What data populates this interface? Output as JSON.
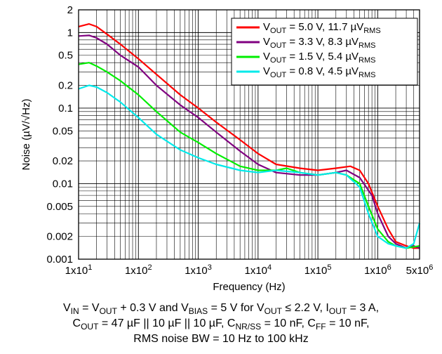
{
  "chart_data": {
    "type": "line",
    "title": "",
    "xlabel": "Frequency (Hz)",
    "ylabel_parts": {
      "pre": "Noise (",
      "mu": "µ",
      "post": "V/√Hz)"
    },
    "xscale": "log",
    "yscale": "log",
    "xlim": [
      10,
      5000000
    ],
    "ylim": [
      0.001,
      2
    ],
    "grid": true,
    "legend_position": "top-right",
    "x_tick_labels": [
      {
        "value": 10,
        "base": "1x10",
        "exp": "1"
      },
      {
        "value": 100,
        "base": "1x10",
        "exp": "2"
      },
      {
        "value": 1000,
        "base": "1x10",
        "exp": "3"
      },
      {
        "value": 10000,
        "base": "1x10",
        "exp": "4"
      },
      {
        "value": 100000,
        "base": "1x10",
        "exp": "5"
      },
      {
        "value": 1000000,
        "base": "1x10",
        "exp": "6"
      },
      {
        "value": 5000000,
        "base": "5x10",
        "exp": "6"
      }
    ],
    "y_tick_labels": [
      {
        "value": 2,
        "label": "2"
      },
      {
        "value": 1,
        "label": "1"
      },
      {
        "value": 0.5,
        "label": "0.5"
      },
      {
        "value": 0.2,
        "label": "0.2"
      },
      {
        "value": 0.1,
        "label": "0.1"
      },
      {
        "value": 0.05,
        "label": "0.05"
      },
      {
        "value": 0.02,
        "label": "0.02"
      },
      {
        "value": 0.01,
        "label": "0.01"
      },
      {
        "value": 0.005,
        "label": "0.005"
      },
      {
        "value": 0.002,
        "label": "0.002"
      },
      {
        "value": 0.001,
        "label": "0.001"
      }
    ],
    "series": [
      {
        "legend": {
          "v": "V",
          "sub": "OUT",
          "text": " = 5.0 V, 11.7 µV",
          "sub2": "RMS"
        },
        "color": "#ff0000",
        "points": [
          [
            10,
            1.2
          ],
          [
            15,
            1.3
          ],
          [
            20,
            1.2
          ],
          [
            30,
            0.95
          ],
          [
            50,
            0.7
          ],
          [
            100,
            0.45
          ],
          [
            200,
            0.28
          ],
          [
            500,
            0.15
          ],
          [
            1000,
            0.1
          ],
          [
            2000,
            0.065
          ],
          [
            5000,
            0.038
          ],
          [
            10000,
            0.025
          ],
          [
            20000,
            0.018
          ],
          [
            50000,
            0.016
          ],
          [
            100000,
            0.015
          ],
          [
            200000,
            0.016
          ],
          [
            350000,
            0.017
          ],
          [
            500000,
            0.015
          ],
          [
            700000,
            0.01
          ],
          [
            1000000,
            0.005
          ],
          [
            1500000,
            0.0025
          ],
          [
            2000000,
            0.0017
          ],
          [
            3000000,
            0.0015
          ],
          [
            4000000,
            0.0014
          ],
          [
            5000000,
            0.0014
          ]
        ]
      },
      {
        "legend": {
          "v": "V",
          "sub": "OUT",
          "text": " = 3.3 V, 8.3 µV",
          "sub2": "RMS"
        },
        "color": "#800080",
        "points": [
          [
            10,
            0.9
          ],
          [
            15,
            0.92
          ],
          [
            20,
            0.85
          ],
          [
            30,
            0.7
          ],
          [
            50,
            0.5
          ],
          [
            100,
            0.35
          ],
          [
            200,
            0.2
          ],
          [
            500,
            0.11
          ],
          [
            1000,
            0.075
          ],
          [
            2000,
            0.048
          ],
          [
            5000,
            0.027
          ],
          [
            10000,
            0.018
          ],
          [
            20000,
            0.014
          ],
          [
            50000,
            0.013
          ],
          [
            100000,
            0.013
          ],
          [
            200000,
            0.014
          ],
          [
            300000,
            0.015
          ],
          [
            500000,
            0.012
          ],
          [
            800000,
            0.007
          ],
          [
            1000000,
            0.004
          ],
          [
            1500000,
            0.002
          ],
          [
            2000000,
            0.0016
          ],
          [
            3000000,
            0.0014
          ],
          [
            4000000,
            0.0015
          ],
          [
            5000000,
            0.0014
          ]
        ]
      },
      {
        "legend": {
          "v": "V",
          "sub": "OUT",
          "text": " = 1.5 V, 5.4 µV",
          "sub2": "RMS"
        },
        "color": "#00ee00",
        "points": [
          [
            10,
            0.38
          ],
          [
            15,
            0.4
          ],
          [
            20,
            0.36
          ],
          [
            30,
            0.3
          ],
          [
            50,
            0.23
          ],
          [
            100,
            0.15
          ],
          [
            200,
            0.09
          ],
          [
            500,
            0.048
          ],
          [
            1000,
            0.035
          ],
          [
            2000,
            0.025
          ],
          [
            5000,
            0.017
          ],
          [
            10000,
            0.015
          ],
          [
            20000,
            0.015
          ],
          [
            30000,
            0.016
          ],
          [
            50000,
            0.014
          ],
          [
            100000,
            0.013
          ],
          [
            200000,
            0.014
          ],
          [
            300000,
            0.013
          ],
          [
            500000,
            0.01
          ],
          [
            700000,
            0.005
          ],
          [
            1000000,
            0.0025
          ],
          [
            1500000,
            0.0017
          ],
          [
            2000000,
            0.0015
          ],
          [
            3000000,
            0.0014
          ],
          [
            5000000,
            0.0015
          ]
        ]
      },
      {
        "legend": {
          "v": "V",
          "sub": "OUT",
          "text": " = 0.8 V, 4.5 µV",
          "sub2": "RMS"
        },
        "color": "#00eaea",
        "points": [
          [
            10,
            0.18
          ],
          [
            15,
            0.2
          ],
          [
            20,
            0.19
          ],
          [
            30,
            0.16
          ],
          [
            50,
            0.12
          ],
          [
            100,
            0.075
          ],
          [
            200,
            0.045
          ],
          [
            500,
            0.028
          ],
          [
            1000,
            0.022
          ],
          [
            2000,
            0.018
          ],
          [
            5000,
            0.015
          ],
          [
            10000,
            0.014
          ],
          [
            20000,
            0.015
          ],
          [
            50000,
            0.014
          ],
          [
            100000,
            0.013
          ],
          [
            200000,
            0.014
          ],
          [
            300000,
            0.013
          ],
          [
            500000,
            0.009
          ],
          [
            700000,
            0.004
          ],
          [
            1000000,
            0.002
          ],
          [
            1500000,
            0.0016
          ],
          [
            2000000,
            0.0015
          ],
          [
            3000000,
            0.0014
          ],
          [
            4000000,
            0.0016
          ],
          [
            5000000,
            0.003
          ]
        ]
      }
    ]
  },
  "conditions": [
    [
      {
        "t": "V"
      },
      {
        "t": "IN",
        "sub": true
      },
      {
        "t": " = V"
      },
      {
        "t": "OUT",
        "sub": true
      },
      {
        "t": " + 0.3 V and V"
      },
      {
        "t": "BIAS",
        "sub": true
      },
      {
        "t": " = 5 V for V"
      },
      {
        "t": "OUT",
        "sub": true
      },
      {
        "t": " ≤ 2.2 V, I"
      },
      {
        "t": "OUT",
        "sub": true
      },
      {
        "t": " = 3 A,"
      }
    ],
    [
      {
        "t": "C"
      },
      {
        "t": "OUT",
        "sub": true
      },
      {
        "t": " = 47 µF || 10 µF || 10 µF, C"
      },
      {
        "t": "NR/SS",
        "sub": true
      },
      {
        "t": " = 10 nF, C"
      },
      {
        "t": "FF",
        "sub": true
      },
      {
        "t": " = 10 nF,"
      }
    ],
    [
      {
        "t": "RMS noise BW = 10 Hz to 100 kHz"
      }
    ]
  ]
}
